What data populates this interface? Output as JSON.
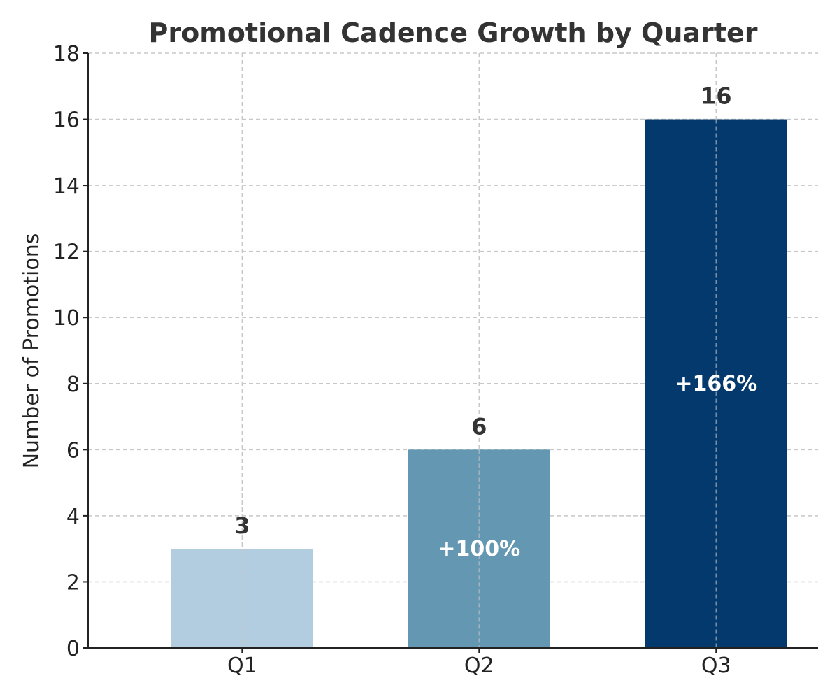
{
  "chart_data": {
    "type": "bar",
    "title": "Promotional Cadence Growth by Quarter",
    "xlabel": "",
    "ylabel": "Number of Promotions",
    "categories": [
      "Q1",
      "Q2",
      "Q3"
    ],
    "values": [
      3,
      6,
      16
    ],
    "value_labels": [
      "3",
      "6",
      "16"
    ],
    "growth_labels": [
      "",
      "+100%",
      "+166%"
    ],
    "colors": [
      "#b3cde0",
      "#6497b1",
      "#03396c"
    ],
    "ylim": [
      0,
      18
    ],
    "yticks": [
      0,
      2,
      4,
      6,
      8,
      10,
      12,
      14,
      16,
      18
    ],
    "grid": true
  }
}
